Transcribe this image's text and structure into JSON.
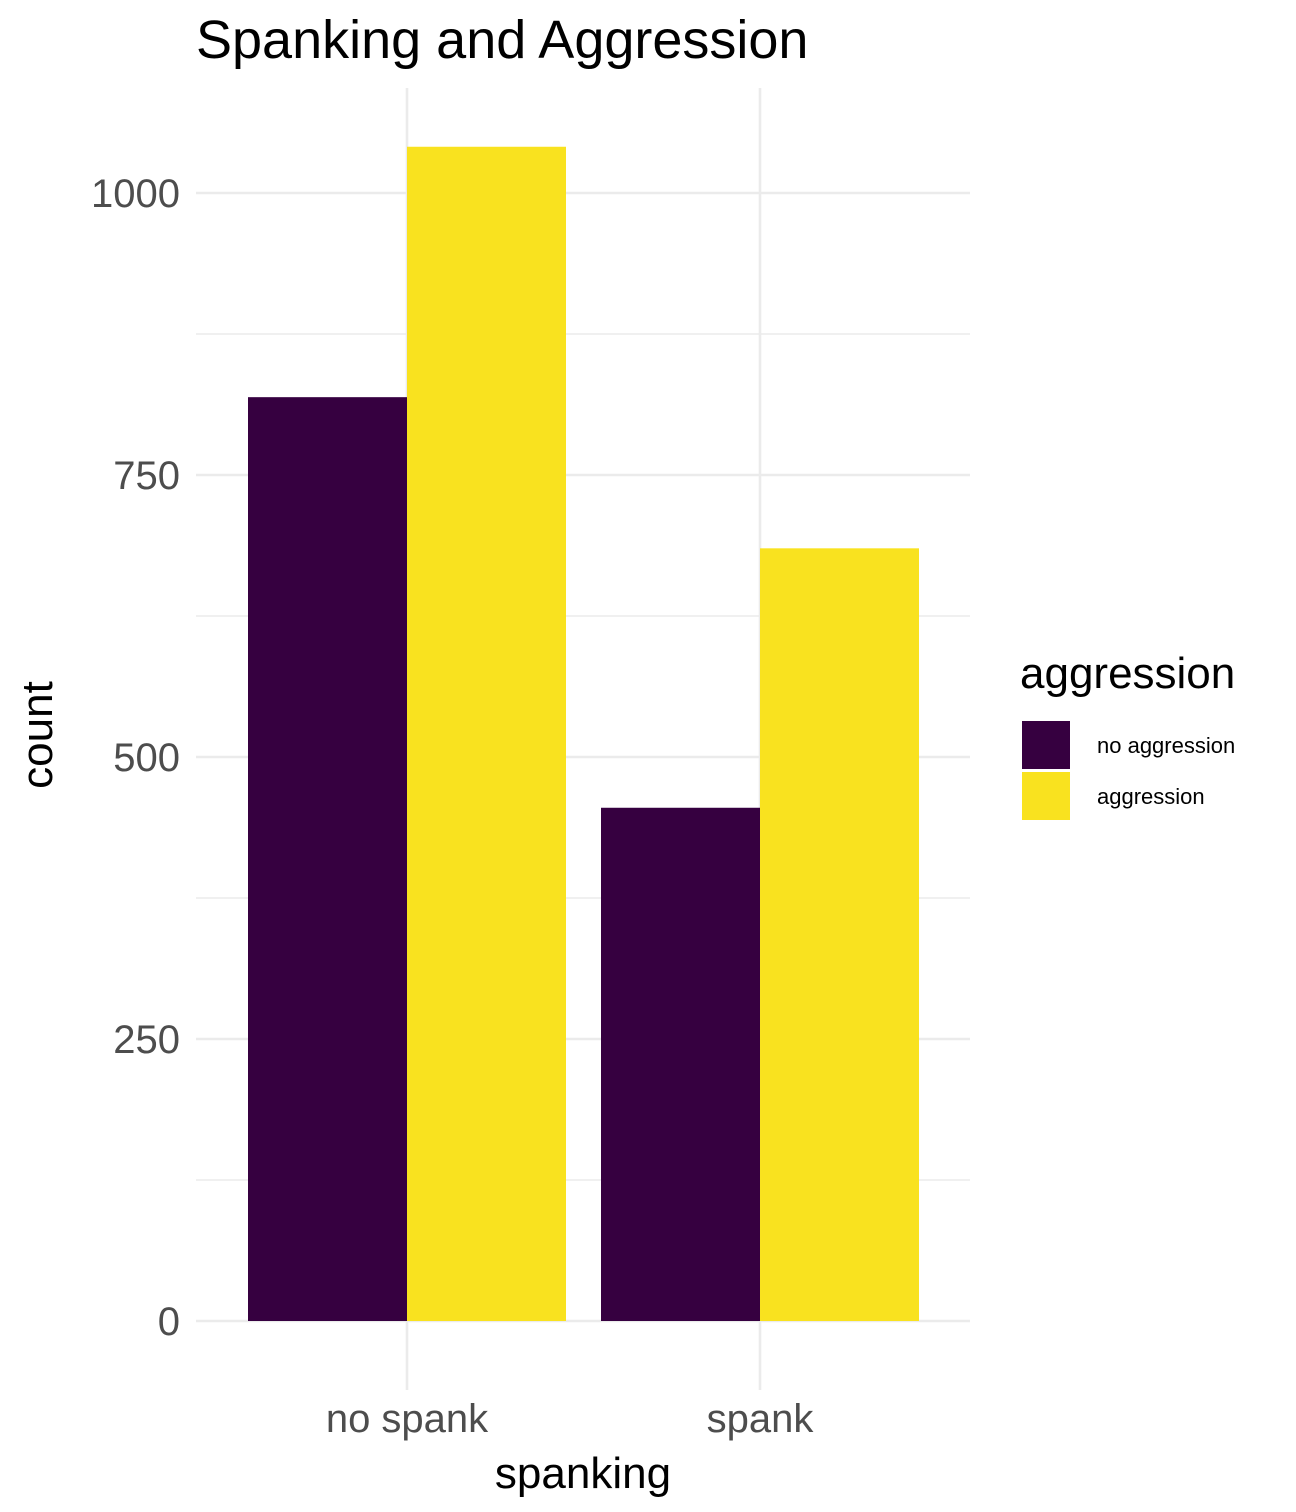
{
  "chart_data": {
    "type": "bar",
    "title": "Spanking and Aggression",
    "xlabel": "spanking",
    "ylabel": "count",
    "categories": [
      "no spank",
      "spank"
    ],
    "series": [
      {
        "name": "no aggression",
        "color": "#360040",
        "values": [
          819,
          455
        ]
      },
      {
        "name": "aggression",
        "color": "#f9e21f",
        "values": [
          1041,
          685
        ]
      }
    ],
    "ylim": [
      0,
      1041
    ],
    "yticks": [
      0,
      250,
      500,
      750,
      1000
    ],
    "ytick_labels": [
      "0",
      "250",
      "500",
      "750",
      "1000"
    ],
    "legend": {
      "title": "aggression",
      "position": "right"
    },
    "grid": true,
    "theme": "minimal"
  }
}
